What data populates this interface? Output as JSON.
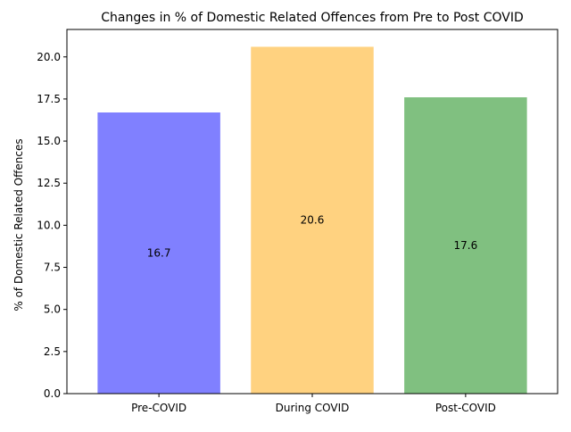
{
  "chart_data": {
    "type": "bar",
    "title": "Changes in % of Domestic Related Offences from Pre to Post COVID",
    "xlabel": "",
    "ylabel": "% of Domestic Related Offences",
    "categories": [
      "Pre-COVID",
      "During COVID",
      "Post-COVID"
    ],
    "values": [
      16.7,
      20.6,
      17.6
    ],
    "data_labels": [
      "16.7",
      "20.6",
      "17.6"
    ],
    "colors": [
      "#8080ff",
      "#ffd280",
      "#80c080"
    ],
    "ylim": [
      0,
      21.63
    ],
    "yticks": [
      0.0,
      2.5,
      5.0,
      7.5,
      10.0,
      12.5,
      15.0,
      17.5,
      20.0
    ],
    "ytick_labels": [
      "0.0",
      "2.5",
      "5.0",
      "7.5",
      "10.0",
      "12.5",
      "15.0",
      "17.5",
      "20.0"
    ],
    "grid": false,
    "legend": "none"
  }
}
